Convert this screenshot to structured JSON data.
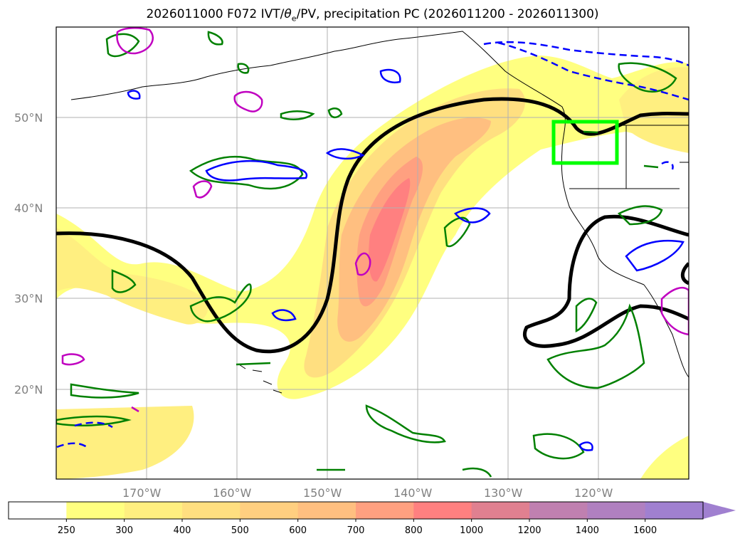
{
  "title": {
    "prefix": "2026011000 F072 IVT/",
    "theta": "θ",
    "theta_sub": "e",
    "suffix": "/PV, precipitation PC (2026011200 - 2026011300)"
  },
  "axes": {
    "lat_labels": [
      "50°N",
      "40°N",
      "30°N",
      "20°N"
    ],
    "lon_labels": [
      "170°W",
      "160°W",
      "150°W",
      "140°W",
      "130°W",
      "120°W"
    ]
  },
  "map_data": {
    "lon_range": [
      -180,
      -110
    ],
    "lat_range": [
      10,
      60
    ],
    "gridlines": true,
    "ivt_color_levels": [
      250,
      300,
      400,
      500,
      600,
      700,
      800,
      1000,
      1200,
      1400,
      1600
    ],
    "region_box": {
      "lon": [
        -125,
        -118
      ],
      "lat": [
        45,
        49.5
      ],
      "color": "#00ff00"
    },
    "contour_colors": {
      "ivt_fill_low": "#ffff80",
      "ivt_fill_high": "#ff8080",
      "black_line": "#000000",
      "green": "#008000",
      "blue": "#0000ff",
      "magenta": "#c000c0"
    }
  },
  "colorbar": {
    "levels": [
      "250",
      "300",
      "400",
      "500",
      "600",
      "700",
      "800",
      "1000",
      "1200",
      "1400",
      "1600"
    ],
    "colors": [
      "#ffffff",
      "#ffff80",
      "#ffef80",
      "#ffdf80",
      "#ffcf80",
      "#ffbf80",
      "#ffa080",
      "#ff8080",
      "#e08090",
      "#c080b0",
      "#b080c0",
      "#a080d0"
    ],
    "extend": "max"
  }
}
